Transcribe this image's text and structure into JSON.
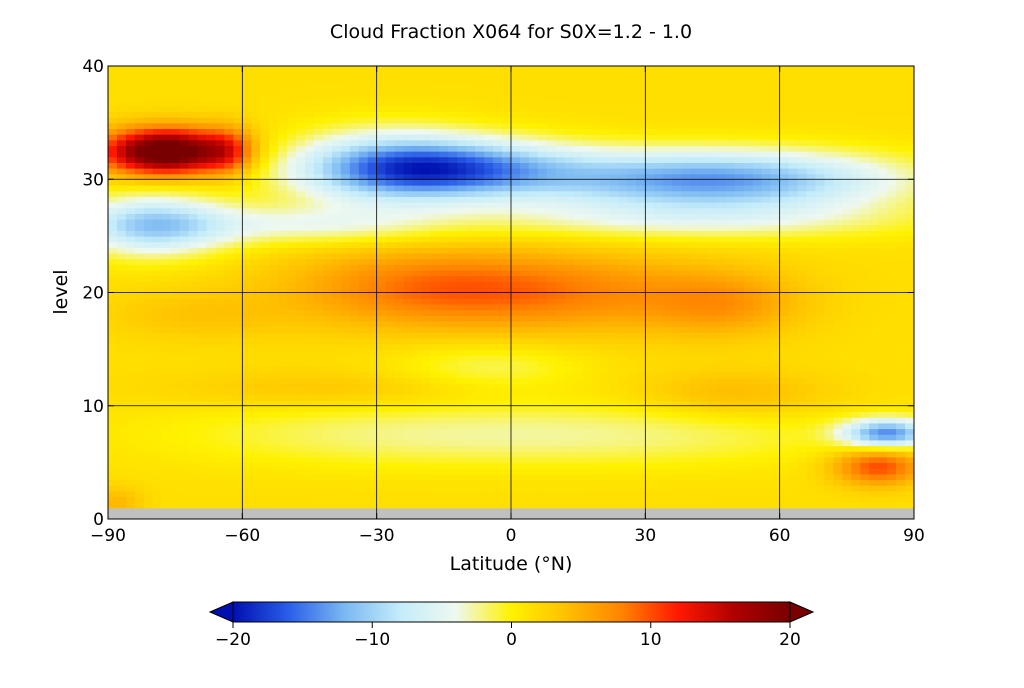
{
  "chart_data": {
    "type": "heatmap",
    "title": "Cloud Fraction X064 for S0X=1.2 - 1.0",
    "xlabel": "Latitude (°N)",
    "ylabel": "level",
    "xlim": [
      -90,
      90
    ],
    "ylim": [
      0,
      40
    ],
    "x_ticks": [
      "−90",
      "−60",
      "−30",
      "0",
      "30",
      "60",
      "90"
    ],
    "x_tick_values": [
      -90,
      -60,
      -30,
      0,
      30,
      60,
      90
    ],
    "y_ticks": [
      "0",
      "10",
      "20",
      "30",
      "40"
    ],
    "y_tick_values": [
      0,
      10,
      20,
      30,
      40
    ],
    "grid": true,
    "colorbar": {
      "range": [
        -20,
        20
      ],
      "ticks": [
        "−20",
        "−10",
        "0",
        "10",
        "20"
      ],
      "tick_values": [
        -20,
        -10,
        0,
        10,
        20
      ],
      "extend": "both",
      "stops": [
        "#0010b0",
        "#2a5ee8",
        "#7ab8f2",
        "#c4ecfa",
        "#eef8f0",
        "#fff200",
        "#ffbf00",
        "#ff8200",
        "#ff1800",
        "#b00000",
        "#780000"
      ]
    },
    "missing_color": "#c0c0c0",
    "missing_level_max": 1,
    "features": [
      {
        "lat": -77,
        "level": 32.5,
        "sigma_lat": 10,
        "sigma_level": 1.4,
        "value": 22
      },
      {
        "lat": -63,
        "level": 32.5,
        "sigma_lat": 4,
        "sigma_level": 1.5,
        "value": 6
      },
      {
        "lat": -15,
        "level": 31,
        "sigma_lat": 20,
        "sigma_level": 1.8,
        "value": -15
      },
      {
        "lat": 45,
        "level": 30,
        "sigma_lat": 28,
        "sigma_level": 1.8,
        "value": -15
      },
      {
        "lat": -28,
        "level": 31,
        "sigma_lat": 15,
        "sigma_level": 2.5,
        "value": -7
      },
      {
        "lat": -80,
        "level": 26,
        "sigma_lat": 12,
        "sigma_level": 1.8,
        "value": -12
      },
      {
        "lat": -45,
        "level": 26,
        "sigma_lat": 20,
        "sigma_level": 1.2,
        "value": -5
      },
      {
        "lat": 40,
        "level": 26.5,
        "sigma_lat": 35,
        "sigma_level": 1.3,
        "value": -5
      },
      {
        "lat": -20,
        "level": 20.5,
        "sigma_lat": 22,
        "sigma_level": 2.5,
        "value": 6
      },
      {
        "lat": 15,
        "level": 20,
        "sigma_lat": 25,
        "sigma_level": 2.5,
        "value": 5
      },
      {
        "lat": 48,
        "level": 19,
        "sigma_lat": 12,
        "sigma_level": 2,
        "value": 4
      },
      {
        "lat": -70,
        "level": 18,
        "sigma_lat": 15,
        "sigma_level": 1.5,
        "value": 2
      },
      {
        "lat": -5,
        "level": 13.5,
        "sigma_lat": 15,
        "sigma_level": 1.5,
        "value": -3
      },
      {
        "lat": 50,
        "level": 11,
        "sigma_lat": 15,
        "sigma_level": 1.5,
        "value": 3
      },
      {
        "lat": -40,
        "level": 11.5,
        "sigma_lat": 25,
        "sigma_level": 1.2,
        "value": 2
      },
      {
        "lat": -30,
        "level": 7.5,
        "sigma_lat": 35,
        "sigma_level": 2,
        "value": -3
      },
      {
        "lat": 30,
        "level": 7.5,
        "sigma_lat": 35,
        "sigma_level": 2,
        "value": -3
      },
      {
        "lat": 84,
        "level": 7.6,
        "sigma_lat": 7,
        "sigma_level": 0.9,
        "value": -15
      },
      {
        "lat": 82,
        "level": 4.7,
        "sigma_lat": 7,
        "sigma_level": 1.2,
        "value": 9
      },
      {
        "lat": -88,
        "level": 1.5,
        "sigma_lat": 4,
        "sigma_level": 1,
        "value": 3
      }
    ]
  }
}
